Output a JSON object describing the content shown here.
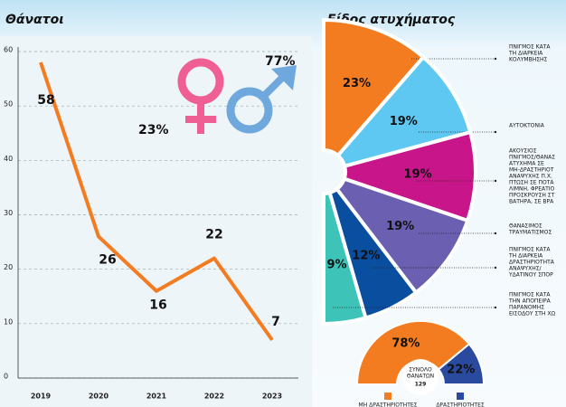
{
  "chart_data": [
    {
      "type": "line",
      "title": "Θάνατοι",
      "categories": [
        "2019",
        "2020",
        "2021",
        "2022",
        "2023"
      ],
      "values": [
        58,
        26,
        16,
        22,
        7
      ],
      "color": "#f47c20",
      "ylim": [
        0,
        60
      ],
      "yticks": [
        0,
        10,
        20,
        30,
        40,
        50,
        60
      ],
      "grid": true,
      "gender_values": [
        23,
        77
      ],
      "gender_value_labels": [
        "23%",
        "77%"
      ],
      "gender_colors": [
        "#ef5f93",
        "#6fa8dc"
      ]
    },
    {
      "type": "pie",
      "title": "Είδος ατυχήματος",
      "categories": [
        [
          "ΠΝΙΓΜΟΣ ΚΑΤΑ",
          "ΤΗ ΔΙΑΡΚΕΙΑ",
          "ΚΟΛΥΜΒΗΣΗΣ"
        ],
        [
          "ΑΥΤΟΚΤΟΝΙΑ"
        ],
        [
          "ΑΚΟΥΣΙΟΣ",
          "ΠΝΙΓΜΟΣ/ΘΑΝΑΣ",
          "ΑΤΥΧΗΜΑ ΣΕ",
          "ΜΗ-ΔΡΑΣΤΗΡΙΟΤ",
          "ΑΝΑΨΥΧΗΣ Π.Χ.",
          "ΠΤΩΣΗ ΣΕ ΠΟΤΑ",
          "ΛΙΜΝΗ, ΦΡΕΑΤΙΟ",
          "ΠΡΟΣΚΡΟΥΣΗ ΣΤ",
          "ΒΑΤΗΡΑ, ΣΕ ΒΡΑ"
        ],
        [
          "ΘΑΝΑΣΙΜΟΣ",
          "ΤΡΑΥΜΑΤΙΣΜΟΣ"
        ],
        [
          "ΠΝΙΓΜΟΣ ΚΑΤΑ",
          "ΤΗ ΔΙΑΡΚΕΙΑ",
          "ΔΡΑΣΤΗΡΙΟΤΗΤΑ",
          "ΑΝΑΨΥΧΗΣ/",
          "ΥΔΑΤΙΝΟΥ ΣΠΟΡ"
        ],
        [
          "ΠΝΙΓΜΟΣ ΚΑΤΑ",
          "ΤΗΝ ΑΠΟΠΕΙΡΑ",
          "ΠΑΡΑΝΟΜΗΣ",
          "ΕΙΣΟΔΟΥ ΣΤΗ ΧΩ"
        ]
      ],
      "values": [
        23,
        19,
        19,
        19,
        12,
        9
      ],
      "value_labels": [
        "23%",
        "19%",
        "19%",
        "19%",
        "12%",
        "9%"
      ],
      "colors": [
        "#f47c20",
        "#5ec8f2",
        "#c8168a",
        "#6a5fb0",
        "#0a4ea0",
        "#3ec3b8"
      ]
    },
    {
      "type": "pie",
      "categories": [
        "ΜΗ ΔΡΑΣΤΗΡΙΟΤΗΤΕΣ",
        "ΔΡΑΣΤΗΡΙΟΤΗΤΕΣ"
      ],
      "values": [
        78,
        22
      ],
      "value_labels": [
        "78%",
        "22%"
      ],
      "colors": [
        "#f47c20",
        "#2a4aa0"
      ],
      "center_label": [
        "ΣΥΝΟΛΟ",
        "ΘΑΝΑΤΩΝ"
      ],
      "total": 129
    }
  ]
}
